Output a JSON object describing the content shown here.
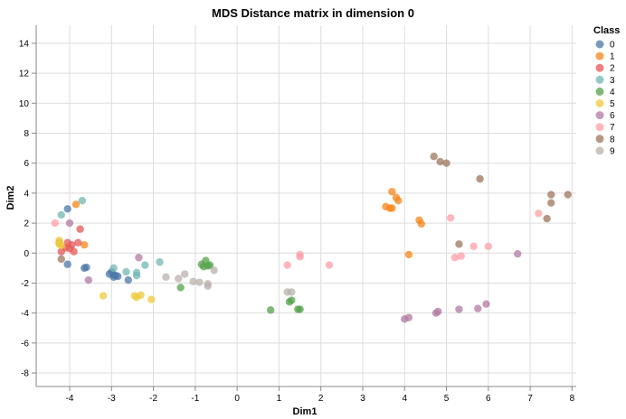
{
  "chart_data": {
    "type": "scatter",
    "title": "MDS Distance matrix in dimension 0",
    "xlabel": "Dim1",
    "ylabel": "Dim2",
    "xlim": [
      -4.8,
      8.1
    ],
    "ylim": [
      -8.9,
      15.2
    ],
    "xticks": [
      -4,
      -3,
      -2,
      -1,
      0,
      1,
      2,
      3,
      4,
      5,
      6,
      7,
      8
    ],
    "yticks": [
      -8,
      -6,
      -4,
      -2,
      0,
      2,
      4,
      6,
      8,
      10,
      12,
      14
    ],
    "grid": true,
    "legend": {
      "title": "Class",
      "placement": "right"
    },
    "series": [
      {
        "name": "0",
        "color": "#4c78a8",
        "points": [
          [
            -4.05,
            2.95
          ],
          [
            -4.05,
            -0.75
          ],
          [
            -3.65,
            -1.0
          ],
          [
            -3.6,
            -0.95
          ],
          [
            -3.0,
            -1.25
          ],
          [
            -2.95,
            -1.45
          ],
          [
            -2.9,
            -1.5
          ],
          [
            -2.95,
            -1.6
          ],
          [
            -2.85,
            -1.55
          ],
          [
            -3.05,
            -1.4
          ],
          [
            -2.6,
            -1.8
          ]
        ]
      },
      {
        "name": "1",
        "color": "#f58518",
        "points": [
          [
            -3.85,
            3.25
          ],
          [
            -3.65,
            0.55
          ],
          [
            -4.25,
            0.7
          ],
          [
            3.55,
            3.1
          ],
          [
            3.65,
            3.0
          ],
          [
            3.7,
            3.0
          ],
          [
            3.7,
            4.1
          ],
          [
            3.8,
            3.7
          ],
          [
            3.85,
            3.5
          ],
          [
            4.35,
            2.2
          ],
          [
            4.4,
            1.95
          ],
          [
            4.1,
            -0.1
          ]
        ]
      },
      {
        "name": "2",
        "color": "#e45756",
        "points": [
          [
            -4.2,
            0.1
          ],
          [
            -4.1,
            0.35
          ],
          [
            -4.05,
            0.7
          ],
          [
            -4.0,
            0.3
          ],
          [
            -3.95,
            0.55
          ],
          [
            -3.8,
            0.7
          ],
          [
            -3.75,
            1.6
          ],
          [
            -3.9,
            0.1
          ]
        ]
      },
      {
        "name": "3",
        "color": "#72b7b2",
        "points": [
          [
            -3.7,
            3.5
          ],
          [
            -4.2,
            2.55
          ],
          [
            -2.95,
            -1.0
          ],
          [
            -2.65,
            -1.25
          ],
          [
            -2.4,
            -1.3
          ],
          [
            -2.4,
            -1.5
          ],
          [
            -2.2,
            -0.8
          ],
          [
            -1.85,
            -0.6
          ]
        ]
      },
      {
        "name": "4",
        "color": "#54a24b",
        "points": [
          [
            -0.85,
            -0.75
          ],
          [
            -0.75,
            -0.5
          ],
          [
            -0.7,
            -0.85
          ],
          [
            -0.8,
            -0.9
          ],
          [
            -0.65,
            -0.8
          ],
          [
            -1.35,
            -2.3
          ],
          [
            0.8,
            -3.8
          ],
          [
            1.25,
            -3.25
          ],
          [
            1.3,
            -3.15
          ],
          [
            1.45,
            -3.75
          ],
          [
            1.5,
            -3.75
          ]
        ]
      },
      {
        "name": "5",
        "color": "#eeca3b",
        "points": [
          [
            -4.25,
            0.85
          ],
          [
            -4.25,
            0.6
          ],
          [
            -4.2,
            0.5
          ],
          [
            -3.2,
            -2.85
          ],
          [
            -2.45,
            -2.85
          ],
          [
            -2.4,
            -2.95
          ],
          [
            -2.3,
            -2.8
          ],
          [
            -2.05,
            -3.1
          ]
        ]
      },
      {
        "name": "6",
        "color": "#b279a2",
        "points": [
          [
            -4.0,
            2.0
          ],
          [
            -3.55,
            -1.8
          ],
          [
            -2.35,
            -0.3
          ],
          [
            4.0,
            -4.4
          ],
          [
            4.1,
            -4.3
          ],
          [
            4.75,
            -4.0
          ],
          [
            4.8,
            -3.9
          ],
          [
            5.3,
            -3.75
          ],
          [
            5.75,
            -3.7
          ],
          [
            5.95,
            -3.4
          ],
          [
            6.7,
            -0.05
          ]
        ]
      },
      {
        "name": "7",
        "color": "#ff9da6",
        "points": [
          [
            -4.35,
            2.0
          ],
          [
            1.2,
            -0.8
          ],
          [
            1.5,
            -0.25
          ],
          [
            1.5,
            -0.1
          ],
          [
            2.2,
            -0.8
          ],
          [
            5.1,
            2.35
          ],
          [
            5.2,
            -0.3
          ],
          [
            5.35,
            -0.2
          ],
          [
            5.65,
            0.45
          ],
          [
            6.0,
            0.45
          ],
          [
            7.2,
            2.65
          ]
        ]
      },
      {
        "name": "8",
        "color": "#9d755d",
        "points": [
          [
            -4.2,
            -0.4
          ],
          [
            4.7,
            6.45
          ],
          [
            4.85,
            6.1
          ],
          [
            5.0,
            6.0
          ],
          [
            5.8,
            4.95
          ],
          [
            5.3,
            0.6
          ],
          [
            7.4,
            2.3
          ],
          [
            7.5,
            3.35
          ],
          [
            7.5,
            3.9
          ],
          [
            7.9,
            3.9
          ]
        ]
      },
      {
        "name": "9",
        "color": "#bab0ac",
        "points": [
          [
            -1.7,
            -1.6
          ],
          [
            -1.4,
            -1.7
          ],
          [
            -1.25,
            -1.4
          ],
          [
            -1.05,
            -1.9
          ],
          [
            -0.9,
            -1.95
          ],
          [
            -0.7,
            -2.05
          ],
          [
            -0.7,
            -2.2
          ],
          [
            -0.55,
            -1.15
          ],
          [
            1.2,
            -2.6
          ],
          [
            1.3,
            -2.6
          ]
        ]
      }
    ]
  }
}
